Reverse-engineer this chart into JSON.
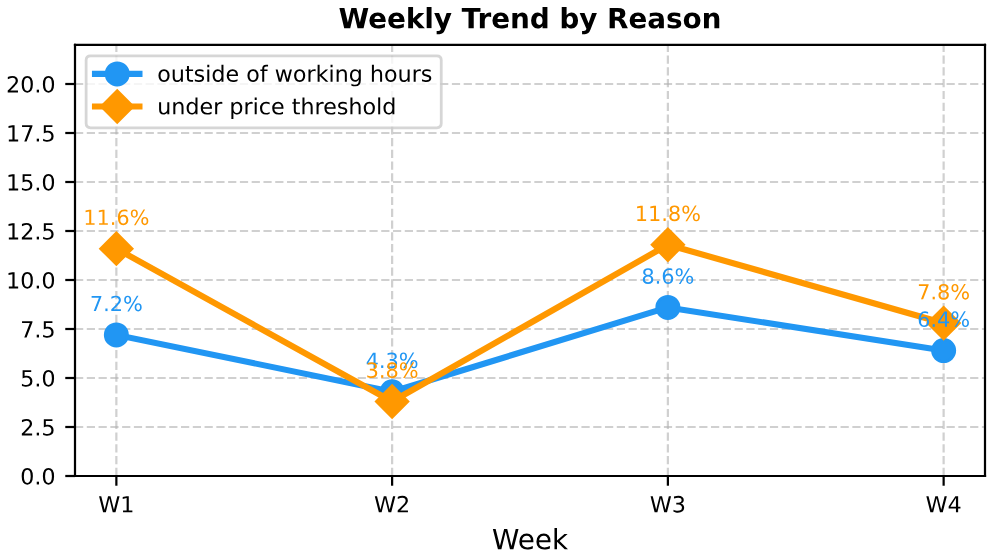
{
  "chart_data": {
    "type": "line",
    "title": "Weekly Trend by Reason",
    "xlabel": "Week",
    "categories": [
      "W1",
      "W2",
      "W3",
      "W4"
    ],
    "series": [
      {
        "name": "outside of working hours",
        "color": "#2196f3",
        "marker": "circle",
        "values": [
          7.2,
          4.3,
          8.6,
          6.4
        ],
        "value_labels": [
          "7.2%",
          "4.3%",
          "8.6%",
          "6.4%"
        ]
      },
      {
        "name": "under price threshold",
        "color": "#ff9800",
        "marker": "diamond",
        "values": [
          11.6,
          3.8,
          11.8,
          7.8
        ],
        "value_labels": [
          "11.6%",
          "3.8%",
          "11.8%",
          "7.8%"
        ]
      }
    ],
    "ylim": [
      0,
      22
    ],
    "yticks": [
      {
        "value": 0,
        "label": "0.0"
      },
      2.5,
      {
        "value": 5,
        "label": "5.0"
      },
      7.5,
      {
        "value": 10,
        "label": "10.0"
      },
      12.5,
      {
        "value": 15,
        "label": "15.0"
      },
      17.5,
      {
        "value": 20,
        "label": "20.0"
      }
    ],
    "grid": true,
    "legend": "top left",
    "line_style": "solid"
  }
}
